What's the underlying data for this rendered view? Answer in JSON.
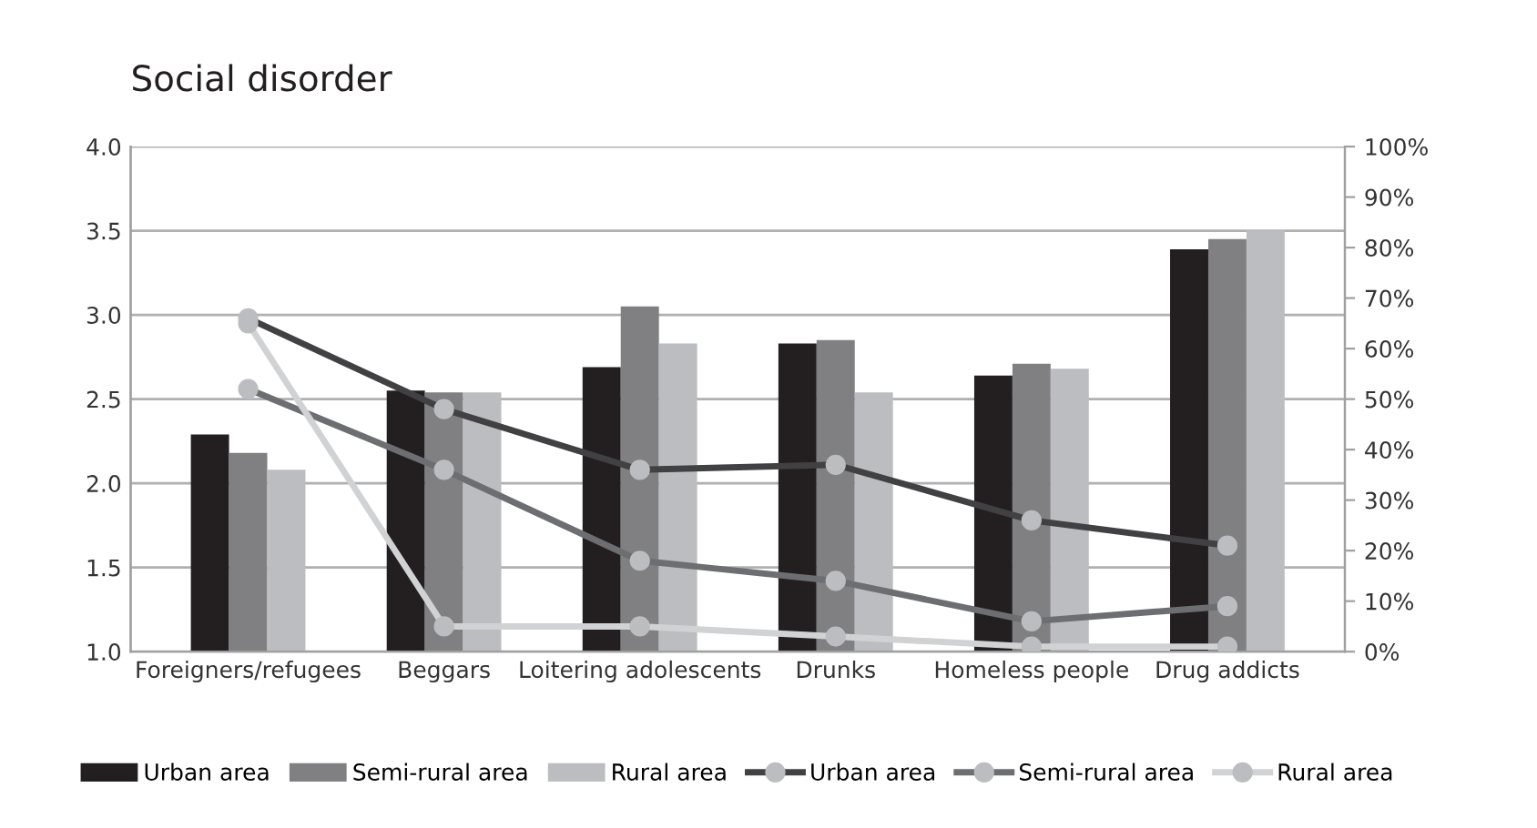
{
  "chart_data": {
    "type": "bar",
    "title": "Social disorder",
    "categories": [
      "Foreigners/refugees",
      "Beggars",
      "Loitering adolescents",
      "Drunks",
      "Homeless people",
      "Drug addicts"
    ],
    "series": [
      {
        "name": "Urban area",
        "color": "#231f20",
        "values": [
          2.29,
          2.55,
          2.69,
          2.83,
          2.64,
          3.39
        ]
      },
      {
        "name": "Semi-rural area",
        "color": "#808083",
        "values": [
          2.18,
          2.54,
          3.05,
          2.85,
          2.71,
          3.45
        ]
      },
      {
        "name": "Rural area",
        "color": "#bcbdc0",
        "values": [
          2.08,
          2.54,
          2.83,
          2.54,
          2.68,
          3.5
        ]
      },
      {
        "name": "Urban area",
        "type": "line",
        "axis": "y2",
        "color": "#414042",
        "values": [
          66,
          48,
          36,
          37,
          26,
          21
        ]
      },
      {
        "name": "Semi-rural area",
        "type": "line",
        "axis": "y2",
        "color": "#6d6e71",
        "values": [
          52,
          36,
          18,
          14,
          6,
          9
        ]
      },
      {
        "name": "Rural area",
        "type": "line",
        "axis": "y2",
        "color": "#d1d2d4",
        "values": [
          65,
          5,
          5,
          3,
          1,
          1
        ]
      }
    ],
    "ylim": [
      1.0,
      4.0
    ],
    "yticks": [
      {
        "value": 1.0,
        "label": "1.0"
      },
      {
        "value": 1.5,
        "label": "1.5"
      },
      {
        "value": 2.0,
        "label": "2.0"
      },
      {
        "value": 2.5,
        "label": "2.5"
      },
      {
        "value": 3.0,
        "label": "3.0"
      },
      {
        "value": 3.5,
        "label": "3.5"
      },
      {
        "value": 4.0,
        "label": "4.0"
      }
    ],
    "y2lim": [
      0,
      100
    ],
    "y2ticks": [
      {
        "value": 0,
        "label": "0%"
      },
      {
        "value": 10,
        "label": "10%"
      },
      {
        "value": 20,
        "label": "20%"
      },
      {
        "value": 30,
        "label": "30%"
      },
      {
        "value": 40,
        "label": "40%"
      },
      {
        "value": 50,
        "label": "50%"
      },
      {
        "value": 60,
        "label": "60%"
      },
      {
        "value": 70,
        "label": "70%"
      },
      {
        "value": 80,
        "label": "80%"
      },
      {
        "value": 90,
        "label": "90%"
      },
      {
        "value": 100,
        "label": "100%"
      }
    ],
    "grid": "y",
    "legend": "bottom",
    "marker": "circle",
    "line_style": "solid"
  }
}
